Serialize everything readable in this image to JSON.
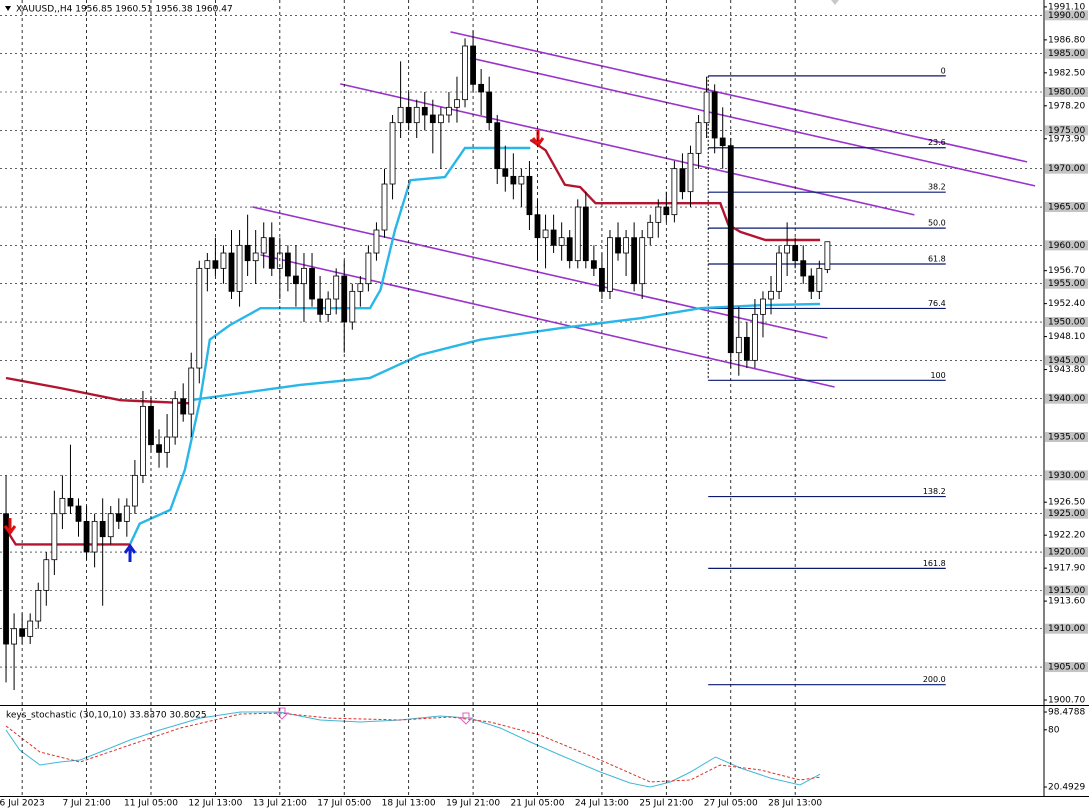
{
  "chart_data": [
    {
      "type": "candlestick",
      "title": "XAUUSD,,H4 1956.85 1960.51 1956.38 1960.47",
      "xlim": [
        -0.75,
        128.9
      ],
      "ylim": [
        1900.05,
        1992.0
      ],
      "xticks": [
        {
          "value": 2,
          "label": "6 Jul 2023"
        },
        {
          "value": 10,
          "label": "7 Jul 21:00"
        },
        {
          "value": 18,
          "label": "11 Jul 05:00"
        },
        {
          "value": 26,
          "label": "12 Jul 13:00"
        },
        {
          "value": 34,
          "label": "13 Jul 21:00"
        },
        {
          "value": 42,
          "label": "17 Jul 05:00"
        },
        {
          "value": 50,
          "label": "18 Jul 13:00"
        },
        {
          "value": 58,
          "label": "19 Jul 21:00"
        },
        {
          "value": 66,
          "label": "21 Jul 05:00"
        },
        {
          "value": 74,
          "label": "24 Jul 13:00"
        },
        {
          "value": 82,
          "label": "25 Jul 21:00"
        },
        {
          "value": 90,
          "label": "27 Jul 05:00"
        },
        {
          "value": 98,
          "label": "28 Jul 13:00"
        }
      ],
      "yticks": [
        {
          "value": 1991.1,
          "label": "1991.10"
        },
        {
          "value": 1986.8,
          "label": "1986.80"
        },
        {
          "value": 1982.5,
          "label": "1982.50"
        },
        {
          "value": 1978.2,
          "label": "1978.20"
        },
        {
          "value": 1973.9,
          "label": "1973.90"
        },
        {
          "value": 1956.7,
          "label": "1956.70"
        },
        {
          "value": 1952.4,
          "label": "1952.40"
        },
        {
          "value": 1948.1,
          "label": "1948.10"
        },
        {
          "value": 1943.8,
          "label": "1943.80"
        },
        {
          "value": 1926.5,
          "label": "1926.50"
        },
        {
          "value": 1922.2,
          "label": "1922.20"
        },
        {
          "value": 1917.9,
          "label": "1917.90"
        },
        {
          "value": 1913.6,
          "label": "1913.60"
        },
        {
          "value": 1900.7,
          "label": "1900.70"
        }
      ],
      "levels": [
        {
          "value": 1990,
          "label": "1990.00"
        },
        {
          "value": 1985,
          "label": "1985.00"
        },
        {
          "value": 1980,
          "label": "1980.00"
        },
        {
          "value": 1975,
          "label": "1975.00"
        },
        {
          "value": 1970,
          "label": "1970.00"
        },
        {
          "value": 1965,
          "label": "1965.00"
        },
        {
          "value": 1960,
          "label": "1960.00"
        },
        {
          "value": 1955,
          "label": "1955.00"
        },
        {
          "value": 1950,
          "label": "1950.00"
        },
        {
          "value": 1945,
          "label": "1945.00"
        },
        {
          "value": 1940,
          "label": "1940.00"
        },
        {
          "value": 1935,
          "label": "1935.00"
        },
        {
          "value": 1930,
          "label": "1930.00"
        },
        {
          "value": 1925,
          "label": "1925.00"
        },
        {
          "value": 1920,
          "label": "1920.00"
        },
        {
          "value": 1915,
          "label": "1915.00"
        },
        {
          "value": 1910,
          "label": "1910.00"
        },
        {
          "value": 1905,
          "label": "1905.00"
        }
      ],
      "ohlc": [
        [
          1925,
          1930,
          1903,
          1908
        ],
        [
          1908,
          1912,
          1902,
          1910
        ],
        [
          1910,
          1912,
          1908,
          1909
        ],
        [
          1909,
          1912,
          1908,
          1911
        ],
        [
          1911,
          1916,
          1910,
          1915
        ],
        [
          1915,
          1920,
          1913,
          1919
        ],
        [
          1919,
          1928,
          1917,
          1925
        ],
        [
          1925,
          1930,
          1923,
          1927
        ],
        [
          1927,
          1934,
          1925,
          1926
        ],
        [
          1926,
          1927,
          1922,
          1924
        ],
        [
          1924,
          1926,
          1919,
          1920
        ],
        [
          1920,
          1925,
          1918,
          1924
        ],
        [
          1924,
          1927,
          1913,
          1922
        ],
        [
          1922,
          1926,
          1921,
          1925
        ],
        [
          1925,
          1927,
          1923,
          1924
        ],
        [
          1924,
          1927,
          1922,
          1926
        ],
        [
          1926,
          1932,
          1925,
          1930
        ],
        [
          1930,
          1941,
          1929,
          1939
        ],
        [
          1939,
          1940,
          1933,
          1934
        ],
        [
          1934,
          1936,
          1931,
          1933
        ],
        [
          1933,
          1938,
          1931,
          1935
        ],
        [
          1935,
          1941,
          1934,
          1940
        ],
        [
          1940,
          1942,
          1937,
          1938
        ],
        [
          1938,
          1946,
          1935,
          1944
        ],
        [
          1944,
          1958,
          1942,
          1957
        ],
        [
          1957,
          1959,
          1954,
          1958
        ],
        [
          1958,
          1961,
          1956,
          1957
        ],
        [
          1957,
          1960,
          1955,
          1959
        ],
        [
          1959,
          1962,
          1953,
          1954
        ],
        [
          1954,
          1962,
          1952,
          1960
        ],
        [
          1960,
          1964,
          1956,
          1958
        ],
        [
          1958,
          1962,
          1955,
          1959
        ],
        [
          1959,
          1963,
          1957,
          1961
        ],
        [
          1961,
          1963,
          1956,
          1957
        ],
        [
          1957,
          1961,
          1953,
          1959
        ],
        [
          1959,
          1960,
          1954,
          1956
        ],
        [
          1956,
          1960,
          1952,
          1955
        ],
        [
          1955,
          1959,
          1950,
          1957
        ],
        [
          1957,
          1959,
          1952,
          1953
        ],
        [
          1953,
          1956,
          1950,
          1951
        ],
        [
          1951,
          1954,
          1950,
          1953
        ],
        [
          1953,
          1957,
          1951,
          1956
        ],
        [
          1956,
          1958,
          1946,
          1950
        ],
        [
          1950,
          1955,
          1949,
          1954
        ],
        [
          1954,
          1956,
          1952,
          1955
        ],
        [
          1955,
          1960,
          1954,
          1959
        ],
        [
          1959,
          1963,
          1958,
          1962
        ],
        [
          1962,
          1970,
          1961,
          1968
        ],
        [
          1968,
          1977,
          1966,
          1976
        ],
        [
          1976,
          1984,
          1974,
          1978
        ],
        [
          1978,
          1980,
          1975,
          1976
        ],
        [
          1976,
          1979,
          1974,
          1978
        ],
        [
          1978,
          1980,
          1975,
          1977
        ],
        [
          1977,
          1979,
          1972,
          1976
        ],
        [
          1976,
          1978,
          1970,
          1977
        ],
        [
          1977,
          1980,
          1976,
          1978
        ],
        [
          1978,
          1982,
          1976,
          1979
        ],
        [
          1979,
          1987,
          1978,
          1986
        ],
        [
          1986,
          1988,
          1980,
          1981
        ],
        [
          1981,
          1983,
          1977,
          1980
        ],
        [
          1980,
          1982,
          1975,
          1976
        ],
        [
          1976,
          1977,
          1968,
          1970
        ],
        [
          1970,
          1973,
          1967,
          1969
        ],
        [
          1969,
          1972,
          1966,
          1968
        ],
        [
          1968,
          1970,
          1965,
          1969
        ],
        [
          1969,
          1971,
          1962,
          1964
        ],
        [
          1964,
          1966,
          1958,
          1961
        ],
        [
          1961,
          1964,
          1957,
          1962
        ],
        [
          1962,
          1964,
          1959,
          1960
        ],
        [
          1960,
          1963,
          1958,
          1961
        ],
        [
          1961,
          1962,
          1957,
          1958
        ],
        [
          1958,
          1966,
          1957,
          1965
        ],
        [
          1965,
          1967,
          1957,
          1958
        ],
        [
          1958,
          1960,
          1956,
          1957
        ],
        [
          1957,
          1959,
          1953,
          1954
        ],
        [
          1954,
          1962,
          1953,
          1961
        ],
        [
          1961,
          1963,
          1958,
          1959
        ],
        [
          1959,
          1962,
          1956,
          1961
        ],
        [
          1961,
          1963,
          1954,
          1955
        ],
        [
          1955,
          1962,
          1953,
          1961
        ],
        [
          1961,
          1964,
          1960,
          1963
        ],
        [
          1963,
          1966,
          1961,
          1965
        ],
        [
          1965,
          1967,
          1963,
          1964
        ],
        [
          1964,
          1971,
          1963,
          1970
        ],
        [
          1970,
          1972,
          1966,
          1967
        ],
        [
          1967,
          1973,
          1965,
          1972
        ],
        [
          1972,
          1977,
          1970,
          1976
        ],
        [
          1976,
          1982,
          1974,
          1980
        ],
        [
          1980,
          1981,
          1972,
          1974
        ],
        [
          1974,
          1978,
          1970,
          1973
        ],
        [
          1973,
          1974,
          1944,
          1946
        ],
        [
          1946,
          1952,
          1943,
          1948
        ],
        [
          1948,
          1950,
          1944,
          1945
        ],
        [
          1945,
          1953,
          1944,
          1951
        ],
        [
          1951,
          1954,
          1948,
          1953
        ],
        [
          1953,
          1956,
          1951,
          1954
        ],
        [
          1954,
          1960,
          1953,
          1959
        ],
        [
          1959,
          1963,
          1956,
          1960
        ],
        [
          1960,
          1961,
          1957,
          1958
        ],
        [
          1958,
          1960,
          1955,
          1956
        ],
        [
          1956,
          1957,
          1953,
          1954
        ],
        [
          1954,
          1958,
          1953,
          1957
        ],
        [
          1956.85,
          1960.51,
          1956.38,
          1960.47
        ]
      ],
      "overlays": [
        {
          "color": "#b3152f",
          "x": [
            0,
            6.7,
            14.2,
            22.9
          ],
          "values": [
            1942.7,
            1941.4,
            1939.8,
            1939.4
          ]
        },
        {
          "color": "#b3152f",
          "x": [
            0,
            1.2,
            15.4
          ],
          "values": [
            1923,
            1921,
            1921
          ]
        },
        {
          "color": "#b3152f",
          "x": [
            65.1,
            67,
            69.4,
            71.3,
            73.2,
            88.7,
            89.7,
            91.2,
            94.3,
            101.1
          ],
          "values": [
            1973.75,
            1972.4,
            1967.9,
            1967.6,
            1965.5,
            1965.5,
            1962.7,
            1961.75,
            1960.7,
            1960.7
          ]
        },
        {
          "color": "#29b6e8",
          "x": [
            15.4,
            16.6,
            20.4,
            22.2,
            24.1,
            25.3,
            27.8,
            31.6,
            45.2,
            46.5,
            48.3,
            50.2,
            54.5,
            57,
            65.1
          ],
          "values": [
            1921,
            1923.7,
            1925.5,
            1930.7,
            1939.8,
            1947.7,
            1949.6,
            1951.8,
            1951.8,
            1954.2,
            1962,
            1968.5,
            1968.9,
            1972.7,
            1972.7
          ]
        },
        {
          "color": "#29b6e8",
          "x": [
            22.9,
            36.5,
            45.2,
            51.4,
            58.9,
            68.8,
            78.8,
            86.2,
            93.7,
            101.1
          ],
          "values": [
            1939.8,
            1941.8,
            1942.7,
            1945.7,
            1947.7,
            1949.2,
            1950.5,
            1951.8,
            1952.2,
            1952.35
          ]
        }
      ],
      "trendlines": [
        {
          "color": "#9933cc",
          "x": [
            55.2,
            126.8
          ],
          "values": [
            1987.84,
            1970.88
          ]
        },
        {
          "color": "#9933cc",
          "x": [
            57.6,
            127.8
          ],
          "values": [
            1984.45,
            1967.75
          ]
        },
        {
          "color": "#9933cc",
          "x": [
            41.5,
            112.8
          ],
          "values": [
            1981.06,
            1963.97
          ]
        },
        {
          "color": "#9933cc",
          "x": [
            30.6,
            102
          ],
          "values": [
            1965.01,
            1947.92
          ]
        },
        {
          "color": "#9933cc",
          "x": [
            31.6,
            102.9
          ],
          "values": [
            1958.75,
            1941.53
          ]
        }
      ],
      "fibonacci": {
        "color": "#0a1a6e",
        "high": 1982.1,
        "low": 1942.4,
        "x": [
          87.2,
          116.7
        ],
        "levels": [
          0,
          23.6,
          38.2,
          {
            "value": 50,
            "label": "50.0"
          },
          61.8,
          76.4,
          100,
          138.2,
          161.8,
          {
            "value": 200,
            "label": "200.0"
          }
        ]
      }
    },
    {
      "type": "line",
      "title": "keys_stochastic (30,10,10) 33.8370 30.8025",
      "ylim": [
        12.2,
        103.7
      ],
      "yticks": [
        98.4788,
        80,
        20.4929
      ],
      "series": [
        {
          "color": "#3fb8d8",
          "x": [
            0,
            1.7,
            4.2,
            6.7,
            9.2,
            11.7,
            15.4,
            19.1,
            24.1,
            29.1,
            34,
            39,
            44,
            48.9,
            53.9,
            57.6,
            61.4,
            65.1,
            68.8,
            73.8,
            77.5,
            80,
            82.5,
            85,
            88.1,
            91.2,
            94.9,
            98.6,
            101.1
          ],
          "values": [
            79.8,
            59,
            43.4,
            46.5,
            48.6,
            56.9,
            69.4,
            79.8,
            92.2,
            98.5,
            98.5,
            90.2,
            88.1,
            90.2,
            94.3,
            92.2,
            81.8,
            67.3,
            53.8,
            36.1,
            24.7,
            20.5,
            25.7,
            36.1,
            51.7,
            40.3,
            29.9,
            22.6,
            33.837
          ]
        },
        {
          "color": "#e0302a",
          "dashed": true,
          "x": [
            0,
            4.2,
            9.2,
            15.4,
            21.6,
            29.1,
            34,
            40.2,
            48.9,
            55.2,
            60.1,
            66.3,
            73.8,
            80,
            85,
            88.7,
            93.7,
            98.6,
            101.1
          ],
          "values": [
            83.9,
            56.9,
            46.5,
            64.2,
            81.8,
            96.4,
            97.4,
            92.2,
            90.2,
            93.3,
            88.1,
            74.6,
            48.6,
            25.7,
            27.8,
            43.4,
            38.2,
            27.8,
            30.8025
          ]
        }
      ]
    }
  ]
}
